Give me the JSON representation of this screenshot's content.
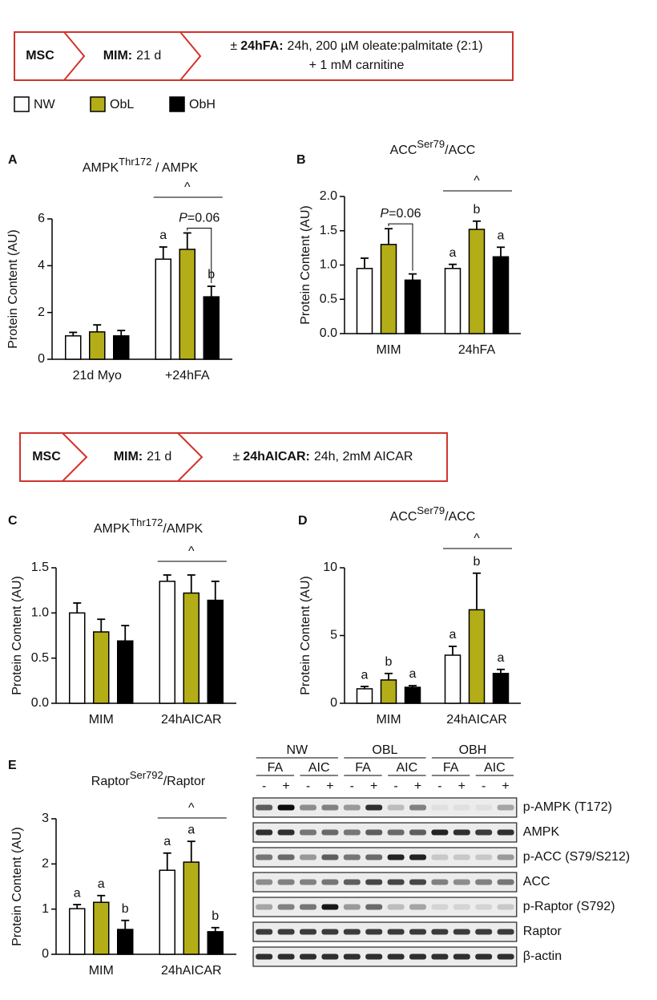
{
  "protocols": [
    {
      "steps": [
        {
          "bold": "MSC"
        },
        {
          "bold": "MIM:",
          "text": "21 d"
        },
        {
          "prefix": "±",
          "bold": "24hFA:",
          "text": "24h, 200 µM oleate:palmitate (2:1)",
          "line2": "+ 1 mM carnitine"
        }
      ]
    },
    {
      "steps": [
        {
          "bold": "MSC"
        },
        {
          "bold": "MIM:",
          "text": "21 d"
        },
        {
          "prefix": "±",
          "bold": "24hAICAR:",
          "text": "24h, 2mM AICAR"
        }
      ]
    }
  ],
  "legend": [
    {
      "label": "NW",
      "color": "#ffffff"
    },
    {
      "label": "ObL",
      "color": "#b3ad17"
    },
    {
      "label": "ObH",
      "color": "#000000"
    }
  ],
  "chart_data": [
    {
      "type": "bar",
      "panel": "A",
      "title_parts": [
        {
          "text": "AMPK"
        },
        {
          "text": "Thr172",
          "sup": true
        },
        {
          "text": " / AMPK"
        }
      ],
      "ylabel": "Protein Content (AU)",
      "categories": [
        "21d Myo",
        "+24hFA"
      ],
      "ylim": [
        0,
        6
      ],
      "yticks": [
        0,
        2,
        4,
        6
      ],
      "series": [
        {
          "color": "#ffffff",
          "values": [
            1.0,
            4.28
          ],
          "errors": [
            0.15,
            0.52
          ],
          "letters": [
            null,
            "a"
          ]
        },
        {
          "color": "#b3ad17",
          "values": [
            1.17,
            4.7
          ],
          "errors": [
            0.3,
            0.7
          ],
          "letters": [
            null,
            null
          ]
        },
        {
          "color": "#000000",
          "values": [
            1.0,
            2.67
          ],
          "errors": [
            0.23,
            0.45
          ],
          "letters": [
            null,
            "b"
          ]
        }
      ],
      "caret": {
        "text": "^",
        "category": 1
      },
      "p_annotation": {
        "category": 1,
        "series": [
          1,
          2
        ],
        "italic": "P",
        "text": "=0.06"
      }
    },
    {
      "type": "bar",
      "panel": "B",
      "title_parts": [
        {
          "text": "ACC"
        },
        {
          "text": "Ser79",
          "sup": true
        },
        {
          "text": "/ACC"
        }
      ],
      "ylabel": "Protein Content (AU)",
      "categories": [
        "MIM",
        "24hFA"
      ],
      "ylim": [
        0,
        2
      ],
      "yticks": [
        {
          "value": 0,
          "label": "0.0"
        },
        0.5,
        {
          "value": 1,
          "label": "1.0"
        },
        1.5,
        {
          "value": 2,
          "label": "2.0"
        }
      ],
      "series": [
        {
          "color": "#ffffff",
          "values": [
            0.95,
            0.95
          ],
          "errors": [
            0.15,
            0.06
          ],
          "letters": [
            null,
            "a"
          ]
        },
        {
          "color": "#b3ad17",
          "values": [
            1.3,
            1.52
          ],
          "errors": [
            0.23,
            0.12
          ],
          "letters": [
            null,
            "b"
          ]
        },
        {
          "color": "#000000",
          "values": [
            0.78,
            1.12
          ],
          "errors": [
            0.09,
            0.14
          ],
          "letters": [
            null,
            "a"
          ]
        }
      ],
      "caret": {
        "text": "^",
        "category": 1
      },
      "p_annotation": {
        "category": 0,
        "series": [
          1,
          2
        ],
        "italic": "P",
        "text": "=0.06"
      }
    },
    {
      "type": "bar",
      "panel": "C",
      "title_parts": [
        {
          "text": "AMPK"
        },
        {
          "text": "Thr172",
          "sup": true
        },
        {
          "text": "/AMPK"
        }
      ],
      "ylabel": "Protein Content (AU)",
      "categories": [
        "MIM",
        "24hAICAR"
      ],
      "ylim": [
        0,
        1.5
      ],
      "yticks": [
        {
          "value": 0,
          "label": "0.0"
        },
        0.5,
        {
          "value": 1,
          "label": "1.0"
        },
        1.5
      ],
      "series": [
        {
          "color": "#ffffff",
          "values": [
            1.0,
            1.35
          ],
          "errors": [
            0.11,
            0.07
          ]
        },
        {
          "color": "#b3ad17",
          "values": [
            0.79,
            1.22
          ],
          "errors": [
            0.14,
            0.2
          ]
        },
        {
          "color": "#000000",
          "values": [
            0.69,
            1.14
          ],
          "errors": [
            0.17,
            0.21
          ]
        }
      ],
      "caret": {
        "text": "^",
        "category": 1
      }
    },
    {
      "type": "bar",
      "panel": "D",
      "title_parts": [
        {
          "text": "ACC"
        },
        {
          "text": "Ser79",
          "sup": true
        },
        {
          "text": "/ACC"
        }
      ],
      "ylabel": "Protein Content (AU)",
      "categories": [
        "MIM",
        "24hAICAR"
      ],
      "ylim": [
        0,
        10
      ],
      "yticks": [
        0,
        5,
        10
      ],
      "series": [
        {
          "color": "#ffffff",
          "values": [
            1.07,
            3.55
          ],
          "errors": [
            0.17,
            0.65
          ],
          "letters": [
            "a",
            "a"
          ]
        },
        {
          "color": "#b3ad17",
          "values": [
            1.72,
            6.9
          ],
          "errors": [
            0.48,
            2.7
          ],
          "letters": [
            "b",
            "b"
          ]
        },
        {
          "color": "#000000",
          "values": [
            1.18,
            2.2
          ],
          "errors": [
            0.12,
            0.3
          ],
          "letters": [
            "a",
            "a"
          ]
        }
      ],
      "caret": {
        "text": "^",
        "category": 1
      }
    },
    {
      "type": "bar",
      "panel": "E",
      "title_parts": [
        {
          "text": "Raptor"
        },
        {
          "text": "Ser792",
          "sup": true
        },
        {
          "text": "/Raptor"
        }
      ],
      "ylabel": "Protein Content (AU)",
      "categories": [
        "MIM",
        "24hAICAR"
      ],
      "ylim": [
        0,
        3
      ],
      "yticks": [
        0,
        1,
        2,
        3
      ],
      "series": [
        {
          "color": "#ffffff",
          "values": [
            1.01,
            1.86
          ],
          "errors": [
            0.09,
            0.38
          ],
          "letters": [
            "a",
            "a"
          ]
        },
        {
          "color": "#b3ad17",
          "values": [
            1.15,
            2.04
          ],
          "errors": [
            0.15,
            0.46
          ],
          "letters": [
            "a",
            "a"
          ]
        },
        {
          "color": "#000000",
          "values": [
            0.55,
            0.5
          ],
          "errors": [
            0.2,
            0.09
          ],
          "letters": [
            "b",
            "b"
          ]
        }
      ],
      "caret": {
        "text": "^",
        "category": 1
      }
    }
  ],
  "blot": {
    "groups": [
      {
        "label": "NW",
        "subgroups": [
          {
            "label": "FA",
            "lanes": [
              "-",
              "+"
            ]
          },
          {
            "label": "AIC",
            "lanes": [
              "-",
              "+"
            ]
          }
        ]
      },
      {
        "label": "OBL",
        "subgroups": [
          {
            "label": "FA",
            "lanes": [
              "-",
              "+"
            ]
          },
          {
            "label": "AIC",
            "lanes": [
              "-",
              "+"
            ]
          }
        ]
      },
      {
        "label": "OBH",
        "subgroups": [
          {
            "label": "FA",
            "lanes": [
              "-",
              "+"
            ]
          },
          {
            "label": "AIC",
            "lanes": [
              "-",
              "+"
            ]
          }
        ]
      }
    ],
    "rows": [
      {
        "label": "p-AMPK (T172)",
        "bands": [
          0.6,
          0.95,
          0.4,
          0.45,
          0.35,
          0.8,
          0.2,
          0.45,
          0.05,
          0.05,
          0.05,
          0.3
        ]
      },
      {
        "label": "AMPK",
        "bands": [
          0.8,
          0.8,
          0.5,
          0.55,
          0.5,
          0.6,
          0.55,
          0.6,
          0.85,
          0.8,
          0.75,
          0.8
        ]
      },
      {
        "label": "p-ACC (S79/S212)",
        "bands": [
          0.5,
          0.55,
          0.35,
          0.6,
          0.5,
          0.55,
          0.85,
          0.85,
          0.15,
          0.15,
          0.15,
          0.35
        ]
      },
      {
        "label": "ACC",
        "bands": [
          0.4,
          0.45,
          0.45,
          0.5,
          0.6,
          0.7,
          0.7,
          0.7,
          0.45,
          0.4,
          0.45,
          0.5
        ]
      },
      {
        "label": "p-Raptor (S792)",
        "bands": [
          0.3,
          0.45,
          0.5,
          0.9,
          0.35,
          0.55,
          0.2,
          0.3,
          0.1,
          0.1,
          0.1,
          0.15
        ]
      },
      {
        "label": "Raptor",
        "bands": [
          0.75,
          0.75,
          0.75,
          0.75,
          0.75,
          0.75,
          0.75,
          0.75,
          0.75,
          0.75,
          0.75,
          0.75
        ]
      },
      {
        "label": "β-actin",
        "bands": [
          0.8,
          0.8,
          0.8,
          0.8,
          0.8,
          0.8,
          0.8,
          0.8,
          0.8,
          0.8,
          0.8,
          0.8
        ]
      }
    ]
  }
}
